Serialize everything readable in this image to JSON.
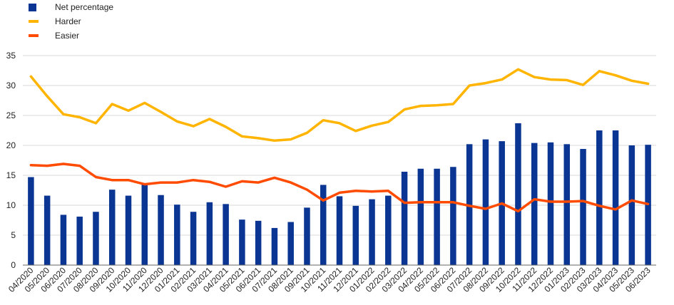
{
  "colors": {
    "net": "#0a3593",
    "harder": "#ffb400",
    "easier": "#ff4b00",
    "grid": "#d9d9d9",
    "axis": "#666666"
  },
  "chart_data": {
    "type": "bar+line",
    "categories": [
      "04/2020",
      "05/2020",
      "06/2020",
      "07/2020",
      "08/2020",
      "09/2020",
      "10/2020",
      "11/2020",
      "12/2020",
      "01/2021",
      "02/2021",
      "03/2021",
      "04/2021",
      "05/2021",
      "06/2021",
      "07/2021",
      "08/2021",
      "09/2021",
      "10/2021",
      "11/2021",
      "12/2021",
      "01/2022",
      "02/2022",
      "03/2022",
      "04/2022",
      "05/2022",
      "06/2022",
      "07/2022",
      "08/2022",
      "09/2022",
      "10/2022",
      "11/2022",
      "12/2022",
      "01/2023",
      "02/2023",
      "03/2023",
      "04/2023",
      "05/2023",
      "06/2023"
    ],
    "series": [
      {
        "name": "Net percentage",
        "type": "bar",
        "values": [
          14.7,
          11.6,
          8.4,
          8.1,
          8.9,
          12.6,
          11.6,
          13.6,
          11.7,
          10.1,
          8.9,
          10.5,
          10.2,
          7.6,
          7.4,
          6.2,
          7.2,
          9.6,
          13.4,
          11.5,
          9.9,
          11.0,
          11.6,
          15.6,
          16.1,
          16.1,
          16.4,
          20.2,
          21.0,
          20.7,
          23.7,
          20.4,
          20.5,
          20.2,
          19.4,
          22.5,
          22.5,
          20.0,
          20.1
        ]
      },
      {
        "name": "Harder",
        "type": "line",
        "values": [
          31.5,
          28.2,
          25.2,
          24.7,
          23.7,
          26.9,
          25.8,
          27.1,
          25.6,
          24.0,
          23.2,
          24.4,
          23.1,
          21.5,
          21.2,
          20.8,
          21.0,
          22.1,
          24.2,
          23.7,
          22.4,
          23.3,
          23.9,
          26.0,
          26.6,
          26.7,
          26.9,
          30.0,
          30.4,
          31.0,
          32.7,
          31.4,
          31.0,
          30.9,
          30.1,
          32.4,
          31.7,
          30.8,
          30.3
        ]
      },
      {
        "name": "Easier",
        "type": "line",
        "values": [
          16.7,
          16.6,
          16.9,
          16.6,
          14.7,
          14.2,
          14.2,
          13.5,
          13.8,
          13.8,
          14.2,
          13.9,
          13.1,
          14.0,
          13.8,
          14.6,
          13.8,
          12.6,
          10.8,
          12.1,
          12.4,
          12.3,
          12.4,
          10.4,
          10.5,
          10.5,
          10.5,
          9.9,
          9.4,
          10.3,
          9.0,
          11.0,
          10.6,
          10.6,
          10.7,
          9.9,
          9.3,
          10.8,
          10.2
        ]
      }
    ],
    "ylim": [
      0,
      35
    ],
    "yticks": [
      0,
      5,
      10,
      15,
      20,
      25,
      30,
      35
    ],
    "grid": true,
    "legend_position": "top-left"
  }
}
